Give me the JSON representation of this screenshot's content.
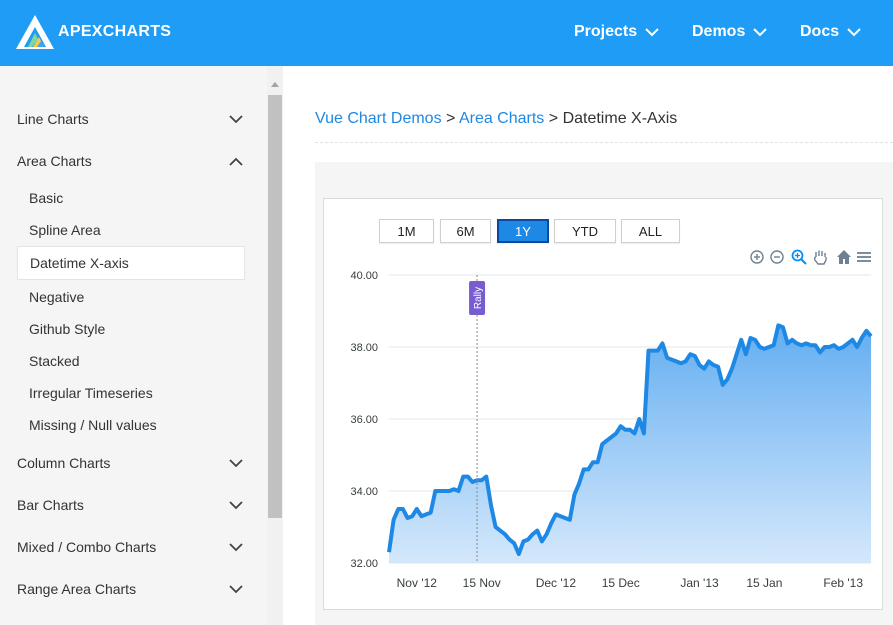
{
  "header": {
    "brand": "APEXCHARTS",
    "nav": [
      {
        "label": "Projects"
      },
      {
        "label": "Demos"
      },
      {
        "label": "Docs"
      }
    ],
    "colors": {
      "bg": "#1e9cf6"
    }
  },
  "sidebar": {
    "groups": [
      {
        "label": "Line Charts",
        "expanded": false
      },
      {
        "label": "Area Charts",
        "expanded": true
      },
      {
        "label": "Column Charts",
        "expanded": false
      },
      {
        "label": "Bar Charts",
        "expanded": false
      },
      {
        "label": "Mixed / Combo Charts",
        "expanded": false
      },
      {
        "label": "Range Area Charts",
        "expanded": false
      }
    ],
    "area_items": [
      {
        "label": "Basic"
      },
      {
        "label": "Spline Area"
      },
      {
        "label": "Datetime X-axis",
        "active": true
      },
      {
        "label": "Negative"
      },
      {
        "label": "Github Style"
      },
      {
        "label": "Stacked"
      },
      {
        "label": "Irregular Timeseries"
      },
      {
        "label": "Missing / Null values"
      }
    ]
  },
  "breadcrumb": {
    "items": [
      "Vue Chart Demos",
      "Area Charts",
      "Datetime X-Axis"
    ],
    "separator": ">"
  },
  "range_buttons": [
    {
      "label": "1M",
      "active": false
    },
    {
      "label": "6M",
      "active": false
    },
    {
      "label": "1Y",
      "active": true
    },
    {
      "label": "YTD",
      "active": false
    },
    {
      "label": "ALL",
      "active": false
    }
  ],
  "toolbar": [
    "zoom-in-icon",
    "zoom-out-icon",
    "selection-zoom-icon",
    "pan-hand-icon",
    "home-icon",
    "menu-icon"
  ],
  "chart_data": {
    "type": "area",
    "x_tick_labels": [
      "Nov '12",
      "15 Nov",
      "Dec '12",
      "15 Dec",
      "Jan '13",
      "15 Jan",
      "Feb '13"
    ],
    "y_tick_labels": [
      "40.00",
      "38.00",
      "36.00",
      "34.00",
      "32.00"
    ],
    "ylim": [
      32,
      40
    ],
    "xlim": [
      "2012-10-26",
      "2013-02-07"
    ],
    "annotation": {
      "text": "Rally",
      "x": "2012-11-14"
    },
    "series": [
      {
        "color": "#1e88e5",
        "points": [
          [
            "2012-10-26",
            32.3
          ],
          [
            "2012-10-27",
            33.2
          ],
          [
            "2012-10-28",
            33.5
          ],
          [
            "2012-10-29",
            33.5
          ],
          [
            "2012-10-30",
            33.25
          ],
          [
            "2012-10-31",
            33.3
          ],
          [
            "2012-11-01",
            33.5
          ],
          [
            "2012-11-02",
            33.3
          ],
          [
            "2012-11-03",
            33.35
          ],
          [
            "2012-11-04",
            33.4
          ],
          [
            "2012-11-05",
            34.0
          ],
          [
            "2012-11-06",
            34.0
          ],
          [
            "2012-11-07",
            34.0
          ],
          [
            "2012-11-08",
            34.0
          ],
          [
            "2012-11-09",
            34.05
          ],
          [
            "2012-11-10",
            34.0
          ],
          [
            "2012-11-11",
            34.4
          ],
          [
            "2012-11-12",
            34.4
          ],
          [
            "2012-11-13",
            34.25
          ],
          [
            "2012-11-14",
            34.3
          ],
          [
            "2012-11-15",
            34.3
          ],
          [
            "2012-11-16",
            34.4
          ],
          [
            "2012-11-17",
            33.6
          ],
          [
            "2012-11-18",
            33.0
          ],
          [
            "2012-11-19",
            32.9
          ],
          [
            "2012-11-20",
            32.8
          ],
          [
            "2012-11-21",
            32.65
          ],
          [
            "2012-11-22",
            32.55
          ],
          [
            "2012-11-23",
            32.25
          ],
          [
            "2012-11-24",
            32.6
          ],
          [
            "2012-11-25",
            32.65
          ],
          [
            "2012-11-26",
            32.8
          ],
          [
            "2012-11-27",
            32.9
          ],
          [
            "2012-11-28",
            32.6
          ],
          [
            "2012-11-29",
            32.8
          ],
          [
            "2012-11-30",
            33.1
          ],
          [
            "2012-12-01",
            33.35
          ],
          [
            "2012-12-02",
            33.3
          ],
          [
            "2012-12-03",
            33.25
          ],
          [
            "2012-12-04",
            33.2
          ],
          [
            "2012-12-05",
            33.9
          ],
          [
            "2012-12-06",
            34.2
          ],
          [
            "2012-12-07",
            34.6
          ],
          [
            "2012-12-08",
            34.6
          ],
          [
            "2012-12-09",
            34.8
          ],
          [
            "2012-12-10",
            34.8
          ],
          [
            "2012-12-11",
            35.3
          ],
          [
            "2012-12-12",
            35.4
          ],
          [
            "2012-12-13",
            35.5
          ],
          [
            "2012-12-14",
            35.6
          ],
          [
            "2012-12-15",
            35.8
          ],
          [
            "2012-12-16",
            35.7
          ],
          [
            "2012-12-17",
            35.7
          ],
          [
            "2012-12-18",
            35.6
          ],
          [
            "2012-12-19",
            36.0
          ],
          [
            "2012-12-20",
            35.6
          ],
          [
            "2012-12-21",
            37.9
          ],
          [
            "2012-12-22",
            37.9
          ],
          [
            "2012-12-23",
            37.9
          ],
          [
            "2012-12-24",
            38.1
          ],
          [
            "2012-12-25",
            37.7
          ],
          [
            "2012-12-26",
            37.65
          ],
          [
            "2012-12-27",
            37.6
          ],
          [
            "2012-12-28",
            37.55
          ],
          [
            "2012-12-29",
            37.6
          ],
          [
            "2012-12-30",
            37.8
          ],
          [
            "2012-12-31",
            37.75
          ],
          [
            "2013-01-01",
            37.5
          ],
          [
            "2013-01-02",
            37.4
          ],
          [
            "2013-01-03",
            37.6
          ],
          [
            "2013-01-04",
            37.5
          ],
          [
            "2013-01-05",
            37.45
          ],
          [
            "2013-01-06",
            36.95
          ],
          [
            "2013-01-07",
            37.1
          ],
          [
            "2013-01-08",
            37.4
          ],
          [
            "2013-01-09",
            37.8
          ],
          [
            "2013-01-10",
            38.2
          ],
          [
            "2013-01-11",
            37.8
          ],
          [
            "2013-01-12",
            38.25
          ],
          [
            "2013-01-13",
            38.2
          ],
          [
            "2013-01-14",
            38.0
          ],
          [
            "2013-01-15",
            37.95
          ],
          [
            "2013-01-16",
            38.0
          ],
          [
            "2013-01-17",
            38.05
          ],
          [
            "2013-01-18",
            38.6
          ],
          [
            "2013-01-19",
            38.55
          ],
          [
            "2013-01-20",
            38.1
          ],
          [
            "2013-01-21",
            38.2
          ],
          [
            "2013-01-22",
            38.1
          ],
          [
            "2013-01-23",
            38.05
          ],
          [
            "2013-01-24",
            38.1
          ],
          [
            "2013-01-25",
            38.05
          ],
          [
            "2013-01-26",
            38.05
          ],
          [
            "2013-01-27",
            37.85
          ],
          [
            "2013-01-28",
            38.0
          ],
          [
            "2013-01-29",
            38.0
          ],
          [
            "2013-01-30",
            38.05
          ],
          [
            "2013-01-31",
            37.95
          ],
          [
            "2013-02-01",
            38.0
          ],
          [
            "2013-02-02",
            38.1
          ],
          [
            "2013-02-03",
            38.2
          ],
          [
            "2013-02-04",
            38.0
          ],
          [
            "2013-02-05",
            38.25
          ],
          [
            "2013-02-06",
            38.45
          ],
          [
            "2013-02-07",
            38.3
          ]
        ]
      }
    ],
    "grid": true,
    "legend": "none"
  }
}
